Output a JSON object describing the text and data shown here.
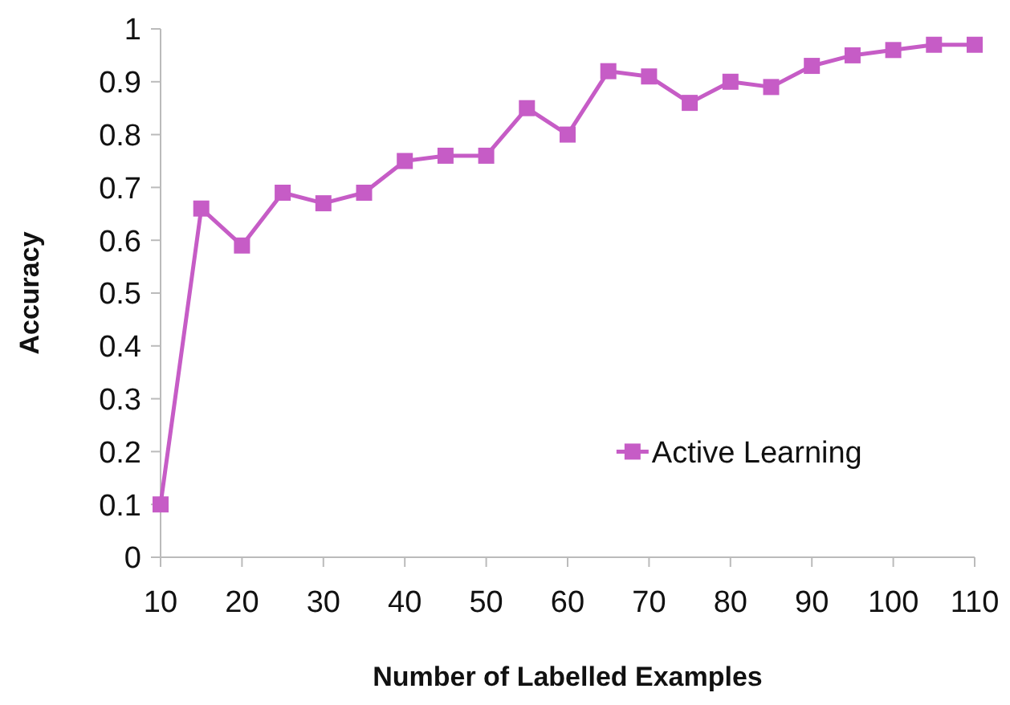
{
  "chart_data": {
    "type": "line",
    "xlabel": "Number of Labelled Examples",
    "ylabel": "Accuracy",
    "x": [
      10,
      15,
      20,
      25,
      30,
      35,
      40,
      45,
      50,
      55,
      60,
      65,
      70,
      75,
      80,
      85,
      90,
      95,
      100,
      105,
      110
    ],
    "series": [
      {
        "name": "Active Learning",
        "color": "#c65cc6",
        "values": [
          0.1,
          0.66,
          0.59,
          0.69,
          0.67,
          0.69,
          0.75,
          0.76,
          0.76,
          0.85,
          0.8,
          0.92,
          0.91,
          0.86,
          0.9,
          0.89,
          0.93,
          0.95,
          0.96,
          0.97,
          0.97
        ]
      }
    ],
    "xlim": [
      10,
      110
    ],
    "xticks": [
      10,
      20,
      30,
      40,
      50,
      60,
      70,
      80,
      90,
      100,
      110
    ],
    "ylim": [
      0,
      1
    ],
    "yticks": [
      0,
      0.1,
      0.2,
      0.3,
      0.4,
      0.5,
      0.6,
      0.7,
      0.8,
      0.9,
      1
    ],
    "marker": "square",
    "legend": "bottom right",
    "grid": false
  }
}
